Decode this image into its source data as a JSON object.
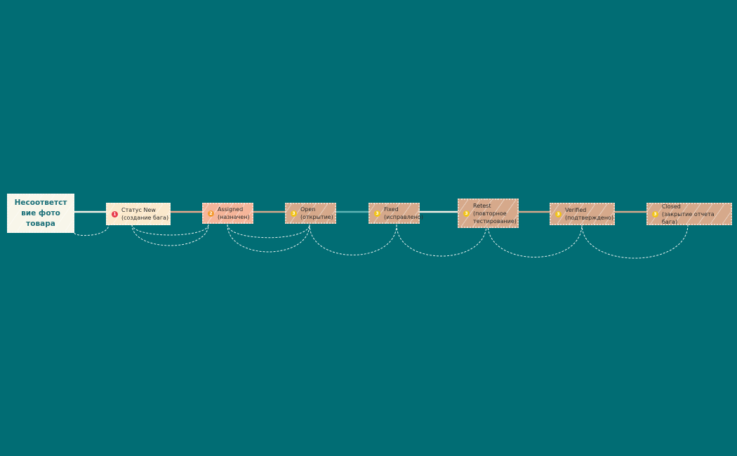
{
  "root": {
    "label": "Несоответст вие фото товара"
  },
  "steps": [
    {
      "badge": "1",
      "badge_color": "#e8394a",
      "fill": "#fbe9cc",
      "label": "Статус New\n(создание бага)"
    },
    {
      "badge": "2",
      "badge_color": "#f39a2e",
      "fill": "#f5b59a",
      "label": "Assigned\n(назначен)"
    },
    {
      "badge": "3",
      "badge_color": "#f2c417",
      "fill": "#d6a98b",
      "label": "Open\n(открытие)"
    },
    {
      "badge": "3",
      "badge_color": "#f2c417",
      "fill": "#d6a98b",
      "label": "Fixed\n(исправлено)"
    },
    {
      "badge": "3",
      "badge_color": "#f2c417",
      "fill": "#d6a98b",
      "label": "Retest\n(повторное\nтестирование)"
    },
    {
      "badge": "3",
      "badge_color": "#f2c417",
      "fill": "#d6a98b",
      "label": "Verified\n(подтверждено)"
    },
    {
      "badge": "3",
      "badge_color": "#f2c417",
      "fill": "#d6a98b",
      "label": "Closed\n(закрытие отчета бага)"
    }
  ],
  "colors": {
    "background": "#016d74",
    "connector_white": "#f4f1e6",
    "connector_salmon": "#e9a98c",
    "connector_tan": "#d6a98b",
    "connector_teal": "#5fb3b5"
  }
}
